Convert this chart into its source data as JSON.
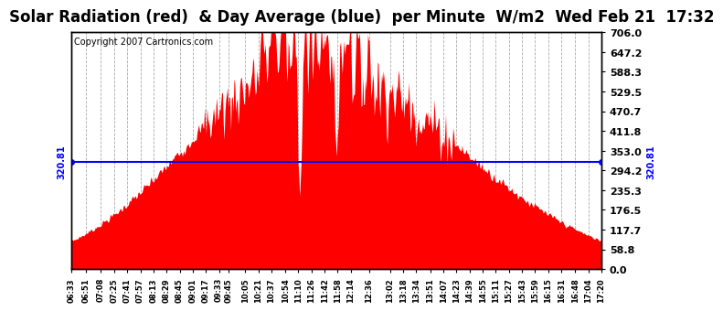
{
  "title": "Solar Radiation (red)  & Day Average (blue)  per Minute  W/m2  Wed Feb 21  17:32",
  "copyright_text": "Copyright 2007 Cartronics.com",
  "ymin": 0.0,
  "ymax": 706.0,
  "yticks": [
    0.0,
    58.8,
    117.7,
    176.5,
    235.3,
    294.2,
    353.0,
    411.8,
    470.7,
    529.5,
    588.3,
    647.2,
    706.0
  ],
  "ytick_labels": [
    "0.0",
    "58.8",
    "117.7",
    "176.5",
    "235.3",
    "294.2",
    "353.0",
    "411.8",
    "470.7",
    "529.5",
    "588.3",
    "647.2",
    "706.0"
  ],
  "day_average": 320.81,
  "side_label": "320.81",
  "bar_color": "#FF0000",
  "line_color": "#0000FF",
  "bg_color": "#FFFFFF",
  "grid_color": "#AAAAAA",
  "title_fontsize": 12,
  "copyright_fontsize": 7,
  "tick_fontsize": 8,
  "side_label_fontsize": 7,
  "num_points": 647,
  "xtick_labels": [
    "06:33",
    "06:51",
    "07:08",
    "07:25",
    "07:41",
    "07:57",
    "08:13",
    "08:29",
    "08:45",
    "09:01",
    "09:17",
    "09:33",
    "09:45",
    "10:05",
    "10:21",
    "10:37",
    "10:54",
    "11:10",
    "11:26",
    "11:42",
    "11:58",
    "12:14",
    "12:36",
    "13:02",
    "13:18",
    "13:34",
    "13:51",
    "14:07",
    "14:23",
    "14:39",
    "14:55",
    "15:11",
    "15:27",
    "15:43",
    "15:59",
    "16:15",
    "16:31",
    "16:48",
    "17:04",
    "17:20"
  ]
}
